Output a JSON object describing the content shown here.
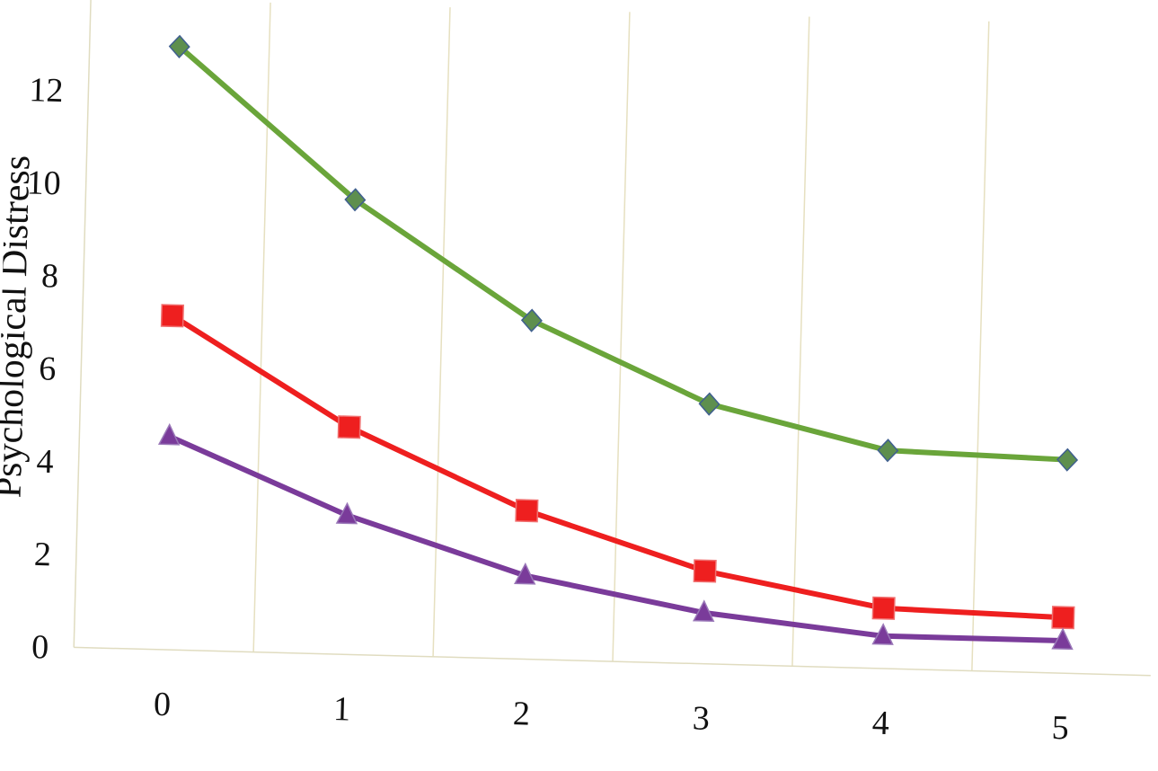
{
  "chart_data": {
    "type": "line",
    "title": "",
    "xlabel": "",
    "ylabel": "Psychological Distress",
    "x": [
      0,
      1,
      2,
      3,
      4,
      5
    ],
    "xlim": [
      0,
      5
    ],
    "ylim": [
      0,
      14
    ],
    "y_ticks": [
      0,
      2,
      4,
      6,
      8,
      10,
      12
    ],
    "x_ticks": [
      0,
      1,
      2,
      3,
      4,
      5
    ],
    "grid": "vertical",
    "series": [
      {
        "marker": "diamond",
        "color": "#6aa53a",
        "marker_color": "#5e8f4e",
        "values": [
          13.0,
          9.8,
          7.3,
          5.6,
          4.7,
          4.6
        ]
      },
      {
        "marker": "square",
        "color": "#ee1f1f",
        "marker_color": "#ee1f1f",
        "values": [
          7.2,
          4.9,
          3.2,
          2.0,
          1.3,
          1.2
        ]
      },
      {
        "marker": "triangle",
        "color": "#7a3b9a",
        "marker_color": "#7a3b9a",
        "values": [
          4.6,
          3.0,
          1.8,
          1.1,
          0.7,
          0.7
        ]
      }
    ]
  }
}
